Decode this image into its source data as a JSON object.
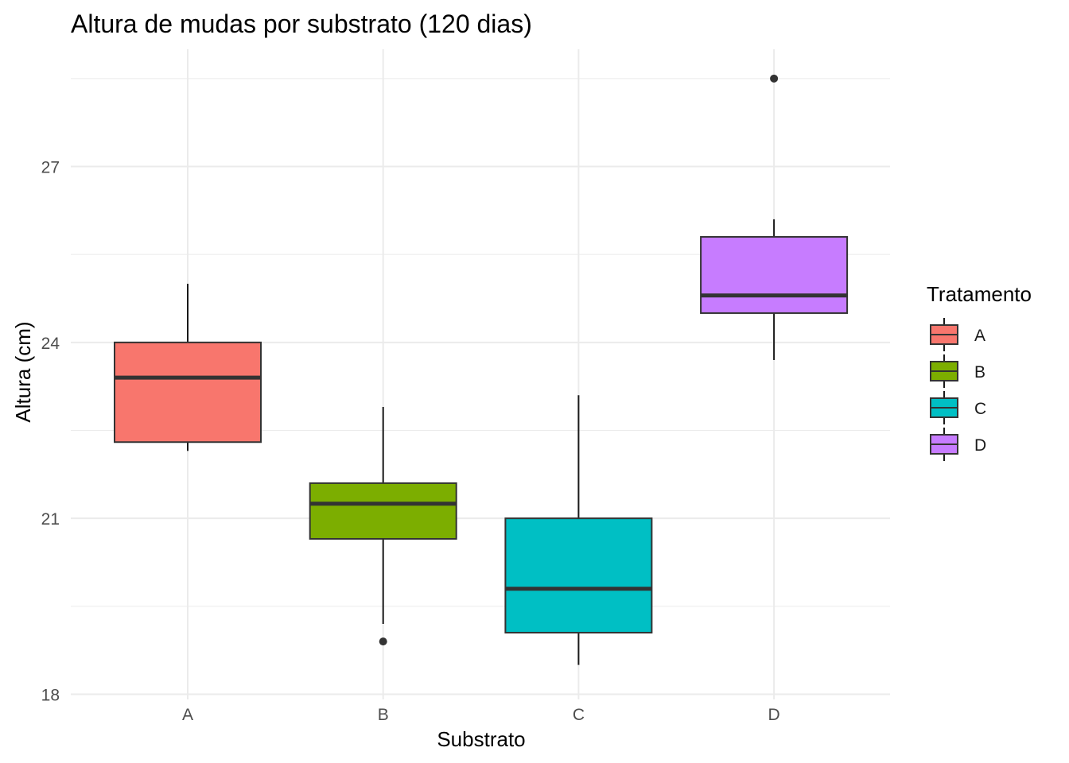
{
  "chart_data": {
    "type": "boxplot",
    "title": "Altura de mudas por substrato (120 dias)",
    "xlabel": "Substrato",
    "ylabel": "Altura (cm)",
    "ylim": [
      18,
      28.6
    ],
    "yticks": [
      18,
      21,
      24,
      27
    ],
    "categories": [
      "A",
      "B",
      "C",
      "D"
    ],
    "grid": true,
    "legend": {
      "title": "Tratamento",
      "position": "right",
      "items": [
        "A",
        "B",
        "C",
        "D"
      ]
    },
    "colors": [
      "#F8766D",
      "#7CAE00",
      "#00BFC4",
      "#C77CFF"
    ],
    "boxes": [
      {
        "category": "A",
        "whisker_low": 22.15,
        "q1": 22.3,
        "median": 23.4,
        "q3": 24.0,
        "whisker_high": 25.0,
        "outliers": []
      },
      {
        "category": "B",
        "whisker_low": 19.2,
        "q1": 20.65,
        "median": 21.25,
        "q3": 21.6,
        "whisker_high": 22.9,
        "outliers": [
          18.9
        ]
      },
      {
        "category": "C",
        "whisker_low": 18.5,
        "q1": 19.05,
        "median": 19.8,
        "q3": 21.0,
        "whisker_high": 23.1,
        "outliers": []
      },
      {
        "category": "D",
        "whisker_low": 23.7,
        "q1": 24.5,
        "median": 24.8,
        "q3": 25.8,
        "whisker_high": 26.1,
        "outliers": [
          28.5
        ]
      }
    ]
  }
}
